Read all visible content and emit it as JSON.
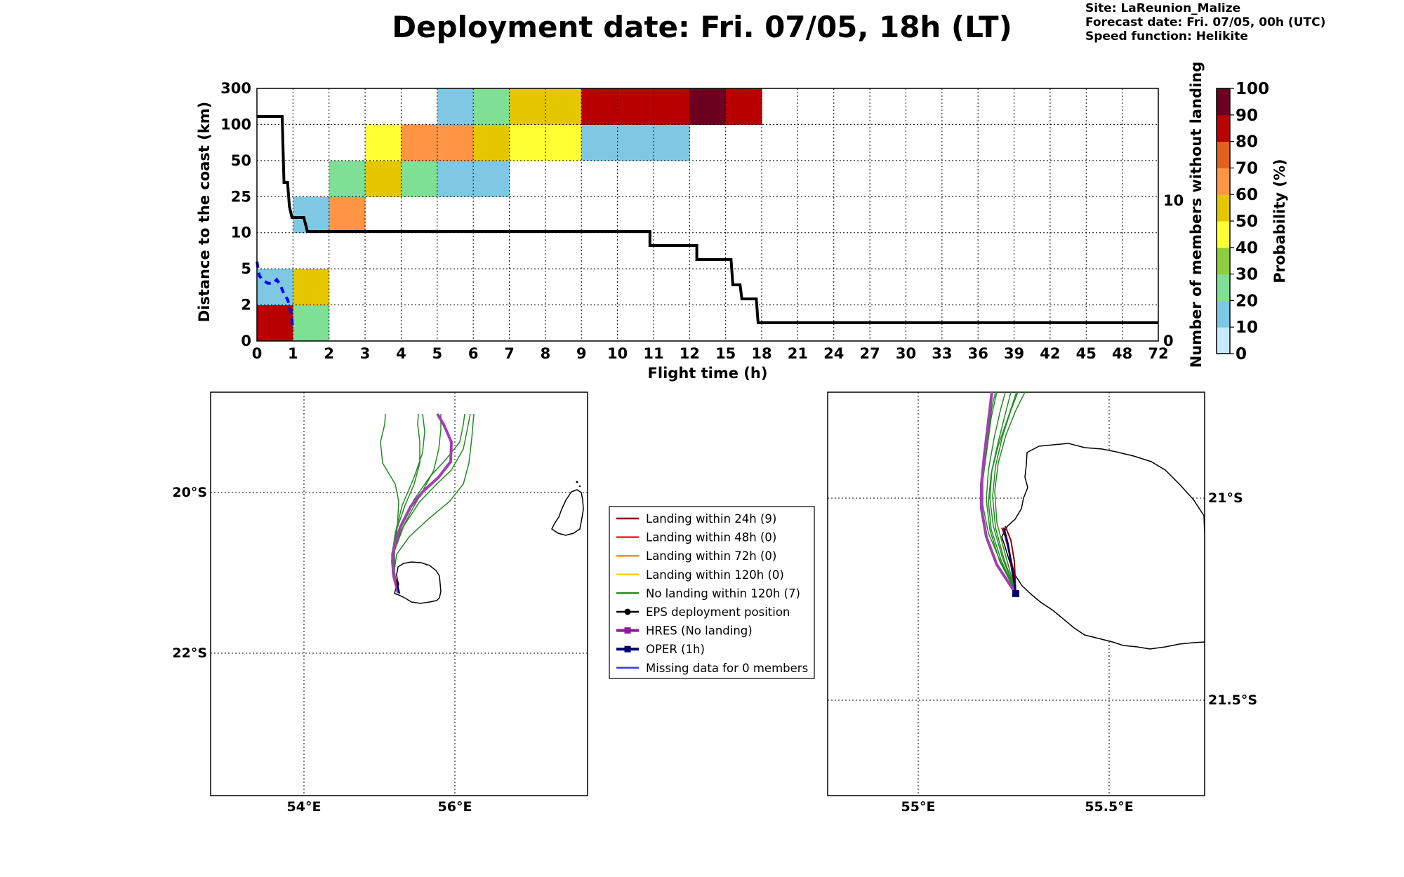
{
  "header": {
    "title": "Deployment date: Fri. 07/05, 18h (LT)",
    "site": "Site: LaReunion_Malize",
    "forecast": "Forecast date: Fri. 07/05, 00h (UTC)",
    "speed": "Speed function: Helikite"
  },
  "chart_data": [
    {
      "type": "heatmap",
      "name": "landing-probability",
      "xlabel": "Flight time (h)",
      "ylabel": "Distance to the coast (km)",
      "y2label": "Number of members without landing",
      "x_ticks": [
        "0",
        "1",
        "2",
        "3",
        "4",
        "5",
        "6",
        "7",
        "8",
        "9",
        "10",
        "11",
        "12",
        "15",
        "18",
        "21",
        "24",
        "27",
        "30",
        "33",
        "36",
        "39",
        "42",
        "45",
        "48",
        "72"
      ],
      "y_ticks": [
        "0",
        "2",
        "5",
        "10",
        "25",
        "50",
        "100",
        "300"
      ],
      "y2_ticks": [
        "0",
        "10"
      ],
      "y2lim": [
        0,
        18
      ],
      "grid": true,
      "cells": [
        {
          "x": 0,
          "y": 0,
          "p": 85
        },
        {
          "x": 0,
          "y": 1,
          "p": 15
        },
        {
          "x": 1,
          "y": 0,
          "p": 25
        },
        {
          "x": 1,
          "y": 1,
          "p": 55
        },
        {
          "x": 1,
          "y": 3,
          "p": 15
        },
        {
          "x": 2,
          "y": 3,
          "p": 65
        },
        {
          "x": 2,
          "y": 4,
          "p": 25
        },
        {
          "x": 3,
          "y": 4,
          "p": 55
        },
        {
          "x": 3,
          "y": 5,
          "p": 45
        },
        {
          "x": 4,
          "y": 4,
          "p": 25
        },
        {
          "x": 4,
          "y": 5,
          "p": 65
        },
        {
          "x": 5,
          "y": 4,
          "p": 15
        },
        {
          "x": 5,
          "y": 5,
          "p": 65
        },
        {
          "x": 5,
          "y": 6,
          "p": 15
        },
        {
          "x": 6,
          "y": 4,
          "p": 15
        },
        {
          "x": 6,
          "y": 5,
          "p": 55
        },
        {
          "x": 6,
          "y": 6,
          "p": 25
        },
        {
          "x": 7,
          "y": 5,
          "p": 45
        },
        {
          "x": 7,
          "y": 6,
          "p": 55
        },
        {
          "x": 8,
          "y": 5,
          "p": 45
        },
        {
          "x": 8,
          "y": 6,
          "p": 55
        },
        {
          "x": 9,
          "y": 5,
          "p": 15
        },
        {
          "x": 9,
          "y": 6,
          "p": 85
        },
        {
          "x": 10,
          "y": 5,
          "p": 15
        },
        {
          "x": 10,
          "y": 6,
          "p": 85
        },
        {
          "x": 11,
          "y": 5,
          "p": 15
        },
        {
          "x": 11,
          "y": 6,
          "p": 85
        },
        {
          "x": 12,
          "y": 6,
          "p": 95
        },
        {
          "x": 13,
          "y": 6,
          "p": 85
        }
      ],
      "members_without_landing": [
        [
          0,
          16
        ],
        [
          0.7,
          16
        ],
        [
          0.75,
          11.3
        ],
        [
          0.85,
          11.3
        ],
        [
          0.9,
          9.6
        ],
        [
          0.97,
          8.8
        ],
        [
          1.3,
          8.8
        ],
        [
          1.4,
          7.8
        ],
        [
          10.9,
          7.8
        ],
        [
          10.9,
          6.8
        ],
        [
          12.2,
          6.8
        ],
        [
          12.2,
          5.8
        ],
        [
          13.15,
          5.8
        ],
        [
          13.2,
          4
        ],
        [
          13.4,
          4
        ],
        [
          13.45,
          3
        ],
        [
          13.85,
          3
        ],
        [
          13.9,
          1.3
        ],
        [
          25,
          1.3
        ]
      ],
      "blue_dashed": [
        [
          0,
          4.4
        ],
        [
          0.07,
          3.6
        ],
        [
          0.15,
          3.4
        ],
        [
          0.3,
          3.2
        ],
        [
          0.45,
          3.2
        ],
        [
          0.55,
          3.4
        ],
        [
          0.65,
          3.1
        ],
        [
          0.75,
          2.6
        ],
        [
          0.85,
          2.3
        ],
        [
          0.92,
          1.8
        ],
        [
          0.97,
          1.2
        ],
        [
          1.0,
          0.6
        ]
      ]
    },
    {
      "type": "colorbar",
      "label": "Probability (%)",
      "ticks": [
        "0",
        "10",
        "20",
        "30",
        "40",
        "50",
        "60",
        "70",
        "80",
        "90",
        "100"
      ],
      "colors": [
        "#c6e9fb",
        "#7ec8e3",
        "#7fdf95",
        "#8fce3f",
        "#ffff33",
        "#e5c700",
        "#ff9545",
        "#e3621b",
        "#b80000",
        "#6b0021"
      ]
    },
    {
      "type": "map",
      "name": "overview-map",
      "lat_ticks": [
        "20°S",
        "22°S"
      ],
      "lon_ticks": [
        "54°E",
        "56°E"
      ]
    },
    {
      "type": "map",
      "name": "zoom-map",
      "lat_ticks": [
        "21°S",
        "21.5°S"
      ],
      "lon_ticks": [
        "55°E",
        "55.5°E"
      ]
    }
  ],
  "legend": [
    {
      "label": "Landing within 24h (9)",
      "color": "#8b0000",
      "marker": "none"
    },
    {
      "label": "Landing within 48h (0)",
      "color": "#ff2020",
      "marker": "none"
    },
    {
      "label": "Landing within 72h (0)",
      "color": "#ff8c00",
      "marker": "none"
    },
    {
      "label": "Landing within 120h (0)",
      "color": "#ffd000",
      "marker": "none"
    },
    {
      "label": "No landing within 120h (7)",
      "color": "#228b22",
      "marker": "none"
    },
    {
      "label": "EPS deployment position",
      "color": "#000000",
      "marker": "circle"
    },
    {
      "label": "HRES (No landing)",
      "color": "#8b1a9e",
      "marker": "square"
    },
    {
      "label": "OPER (1h)",
      "color": "#00006e",
      "marker": "square"
    },
    {
      "label": "Missing data for 0 members",
      "color": "#3a3aff",
      "marker": "none"
    }
  ]
}
